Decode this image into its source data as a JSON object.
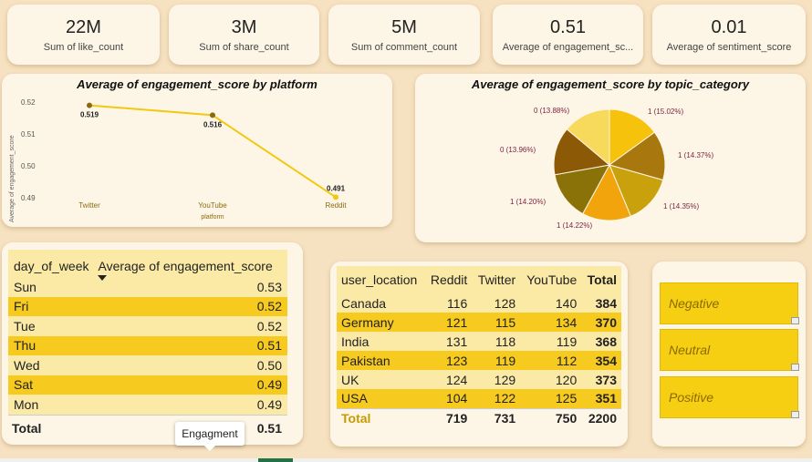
{
  "kpis": [
    {
      "value": "22M",
      "label": "Sum of like_count"
    },
    {
      "value": "3M",
      "label": "Sum of share_count"
    },
    {
      "value": "5M",
      "label": "Sum of comment_count"
    },
    {
      "value": "0.51",
      "label": "Average of engagement_sc..."
    },
    {
      "value": "0.01",
      "label": "Average of sentiment_score"
    }
  ],
  "line_chart": {
    "title": "Average of engagement_score by platform",
    "ylabel": "Average of engagement_score",
    "xlabel": "platform",
    "ticks": [
      "0.52",
      "0.51",
      "0.50",
      "0.49"
    ],
    "categories": [
      "Twitter",
      "YouTube",
      "Reddit"
    ],
    "data_labels": [
      "0.519",
      "0.516",
      "0.491"
    ]
  },
  "pie_chart": {
    "title": "Average of engagement_score by topic_category",
    "labels": [
      "1 (15.02%)",
      "1 (14.37%)",
      "1 (14.35%)",
      "1 (14.22%)",
      "1 (14.20%)",
      "0 (13.96%)",
      "0 (13.88%)"
    ]
  },
  "chart_data": [
    {
      "type": "line",
      "title": "Average of engagement_score by platform",
      "xlabel": "platform",
      "ylabel": "Average of engagement_score",
      "categories": [
        "Twitter",
        "YouTube",
        "Reddit"
      ],
      "values": [
        0.519,
        0.516,
        0.491
      ],
      "ylim": [
        0.49,
        0.52
      ],
      "color": "#f2c811"
    },
    {
      "type": "pie",
      "title": "Average of engagement_score by topic_category",
      "values": [
        15.02,
        14.37,
        14.35,
        14.22,
        14.2,
        13.96,
        13.88
      ],
      "colors": [
        "#f7c20c",
        "#a8780f",
        "#c9a10d",
        "#f1a40b",
        "#8a7208",
        "#8c5a06",
        "#f7da5c"
      ]
    }
  ],
  "day_table": {
    "col1": "day_of_week",
    "col2": "Average of engagement_score",
    "rows": [
      {
        "day": "Sun",
        "val": "0.53"
      },
      {
        "day": "Fri",
        "val": "0.52"
      },
      {
        "day": "Tue",
        "val": "0.52"
      },
      {
        "day": "Thu",
        "val": "0.51"
      },
      {
        "day": "Wed",
        "val": "0.50"
      },
      {
        "day": "Sat",
        "val": "0.49"
      },
      {
        "day": "Mon",
        "val": "0.49"
      }
    ],
    "total_label": "Total",
    "total_val": "0.51"
  },
  "tooltip": "Engagment",
  "matrix": {
    "headers": [
      "user_location",
      "Reddit",
      "Twitter",
      "YouTube",
      "Total"
    ],
    "rows": [
      [
        "Canada",
        "116",
        "128",
        "140",
        "384"
      ],
      [
        "Germany",
        "121",
        "115",
        "134",
        "370"
      ],
      [
        "India",
        "131",
        "118",
        "119",
        "368"
      ],
      [
        "Pakistan",
        "123",
        "119",
        "112",
        "354"
      ],
      [
        "UK",
        "124",
        "129",
        "120",
        "373"
      ],
      [
        "USA",
        "104",
        "122",
        "125",
        "351"
      ]
    ],
    "total": [
      "Total",
      "719",
      "731",
      "750",
      "2200"
    ]
  },
  "slicer": [
    "Negative",
    "Neutral",
    "Positive"
  ],
  "colors": {
    "accent": "#f2c811",
    "background": "#f6e1c0",
    "card": "#fdf6e6"
  }
}
